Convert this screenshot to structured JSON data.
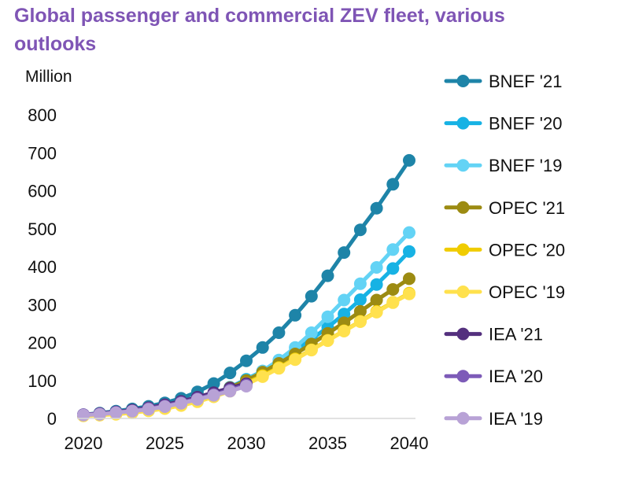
{
  "chart_data": {
    "type": "line",
    "title": "Global passenger and commercial ZEV fleet, various outlooks",
    "ylabel": "Million",
    "xlabel": "",
    "ylim": [
      0,
      800
    ],
    "xlim": [
      2020,
      2040
    ],
    "yticks": [
      0,
      100,
      200,
      300,
      400,
      500,
      600,
      700,
      800
    ],
    "xticks": [
      2020,
      2025,
      2030,
      2035,
      2040
    ],
    "grid": false,
    "legend": "right",
    "series": [
      {
        "name": "BNEF '21",
        "color": "#1e84a8",
        "x": [
          2020,
          2021,
          2022,
          2023,
          2024,
          2025,
          2026,
          2027,
          2028,
          2029,
          2030,
          2031,
          2032,
          2033,
          2034,
          2035,
          2036,
          2037,
          2038,
          2039,
          2040
        ],
        "values": [
          10,
          14,
          19,
          25,
          32,
          41,
          53,
          70,
          92,
          120,
          152,
          187,
          226,
          272,
          322,
          376,
          437,
          497,
          554,
          617,
          680
        ]
      },
      {
        "name": "BNEF '20",
        "color": "#17b2e4",
        "x": [
          2020,
          2021,
          2022,
          2023,
          2024,
          2025,
          2026,
          2027,
          2028,
          2029,
          2030,
          2031,
          2032,
          2033,
          2034,
          2035,
          2036,
          2037,
          2038,
          2039,
          2040
        ],
        "values": [
          9,
          11,
          14,
          18,
          23,
          29,
          38,
          50,
          64,
          82,
          103,
          125,
          151,
          178,
          209,
          240,
          275,
          313,
          353,
          395,
          440
        ]
      },
      {
        "name": "BNEF '19",
        "color": "#63d3f5",
        "x": [
          2020,
          2021,
          2022,
          2023,
          2024,
          2025,
          2026,
          2027,
          2028,
          2029,
          2030,
          2031,
          2032,
          2033,
          2034,
          2035,
          2036,
          2037,
          2038,
          2039,
          2040
        ],
        "values": [
          8,
          10,
          13,
          17,
          22,
          29,
          37,
          48,
          62,
          79,
          100,
          125,
          154,
          187,
          226,
          268,
          312,
          355,
          398,
          445,
          490
        ]
      },
      {
        "name": "OPEC '21",
        "color": "#9c8b12",
        "x": [
          2020,
          2021,
          2022,
          2023,
          2024,
          2025,
          2026,
          2027,
          2028,
          2029,
          2030,
          2031,
          2032,
          2033,
          2034,
          2035,
          2036,
          2037,
          2038,
          2039,
          2040
        ],
        "values": [
          8,
          10,
          13,
          17,
          22,
          29,
          38,
          50,
          64,
          81,
          100,
          122,
          145,
          170,
          196,
          224,
          252,
          282,
          312,
          340,
          368
        ]
      },
      {
        "name": "OPEC '20",
        "color": "#f0cc00",
        "x": [
          2020,
          2021,
          2022,
          2023,
          2024,
          2025,
          2026,
          2027,
          2028,
          2029,
          2030,
          2031,
          2032,
          2033,
          2034,
          2035,
          2036,
          2037,
          2038,
          2039,
          2040
        ],
        "values": [
          7,
          9,
          12,
          16,
          21,
          27,
          35,
          46,
          59,
          75,
          93,
          113,
          134,
          157,
          181,
          206,
          231,
          256,
          282,
          306,
          330
        ]
      },
      {
        "name": "OPEC '19",
        "color": "#ffe14d",
        "x": [
          2020,
          2021,
          2022,
          2023,
          2024,
          2025,
          2026,
          2027,
          2028,
          2029,
          2030,
          2031,
          2032,
          2033,
          2034,
          2035,
          2036,
          2037,
          2038,
          2039,
          2040
        ],
        "values": [
          7,
          9,
          11,
          15,
          20,
          26,
          34,
          44,
          57,
          72,
          90,
          110,
          132,
          155,
          180,
          205,
          230,
          255,
          280,
          305,
          328
        ]
      },
      {
        "name": "IEA '21",
        "color": "#54307e",
        "x": [
          2020,
          2021,
          2022,
          2023,
          2024,
          2025,
          2026,
          2027,
          2028,
          2029,
          2030
        ],
        "values": [
          10,
          13,
          17,
          22,
          28,
          36,
          45,
          56,
          68,
          80,
          92
        ]
      },
      {
        "name": "IEA '20",
        "color": "#7d5bb8",
        "x": [
          2020,
          2021,
          2022,
          2023,
          2024,
          2025,
          2026,
          2027,
          2028,
          2029,
          2030
        ],
        "values": [
          10,
          12,
          16,
          20,
          26,
          33,
          42,
          52,
          63,
          75,
          88
        ]
      },
      {
        "name": "IEA '19",
        "color": "#b8a2d6",
        "x": [
          2020,
          2021,
          2022,
          2023,
          2024,
          2025,
          2026,
          2027,
          2028,
          2029,
          2030
        ],
        "values": [
          9,
          11,
          15,
          19,
          24,
          31,
          40,
          50,
          61,
          72,
          85
        ]
      }
    ]
  }
}
